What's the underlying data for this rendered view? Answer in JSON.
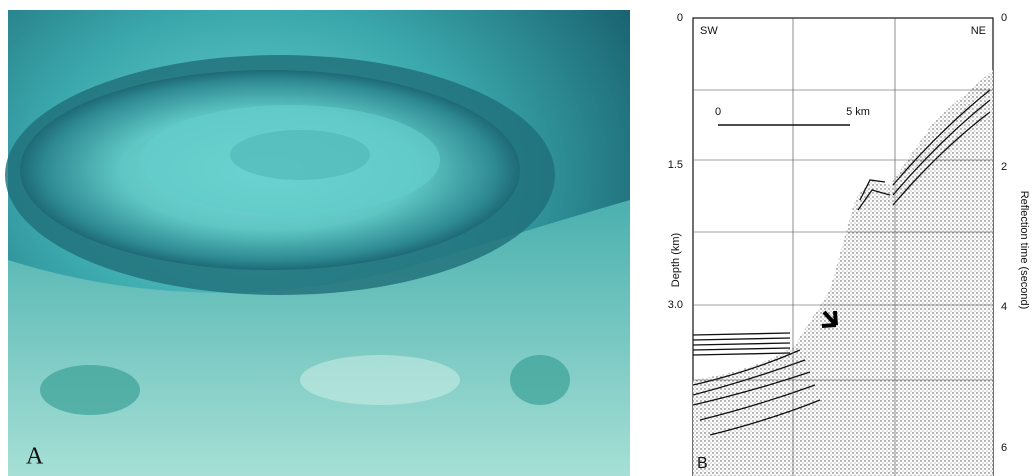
{
  "panel_a": {
    "label": "A"
  },
  "panel_b": {
    "label": "B",
    "direction_left": "SW",
    "direction_right": "NE",
    "scale_bar": {
      "start": "0",
      "end": "5 km"
    },
    "left_axis": {
      "title": "Depth (km)",
      "ticks": [
        "0",
        "1.5",
        "3.0"
      ]
    },
    "right_axis": {
      "title": "Reflection time (second)",
      "ticks": [
        "0",
        "2",
        "4",
        "6"
      ]
    }
  }
}
